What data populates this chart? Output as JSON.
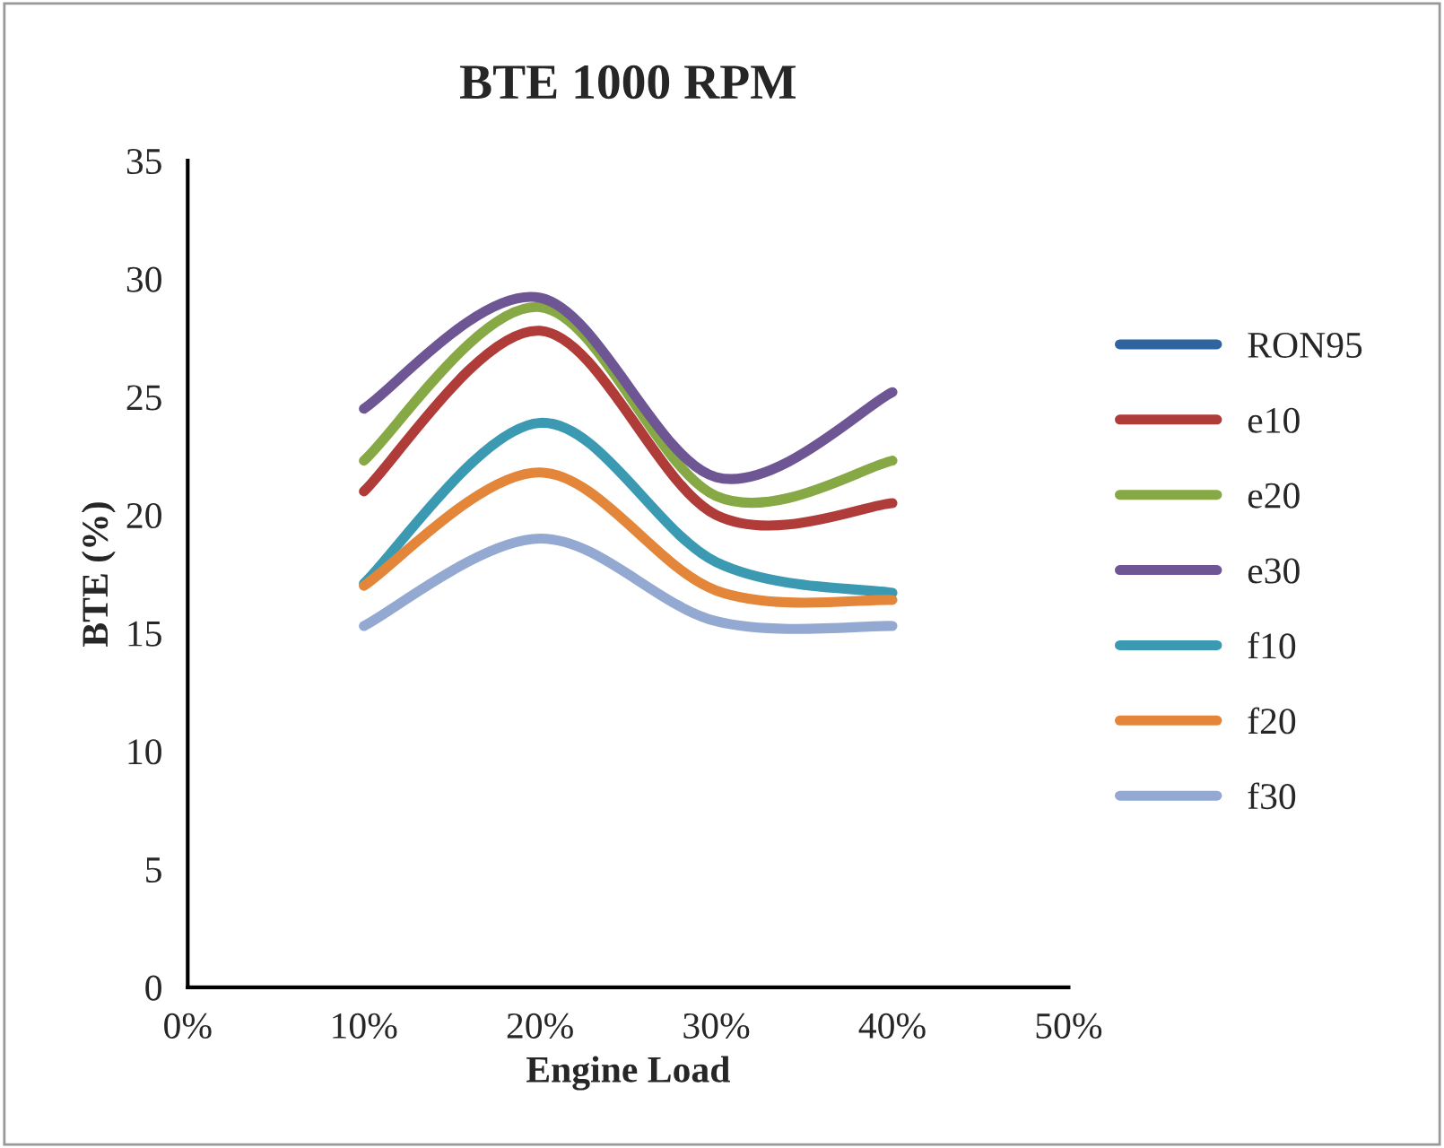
{
  "chart_data": {
    "type": "line",
    "title": "BTE 1000 RPM",
    "xlabel": "Engine Load",
    "ylabel": "BTE (%)",
    "x": [
      10,
      20,
      30,
      40
    ],
    "xlim": [
      0,
      50
    ],
    "xticks": [
      {
        "value": 0,
        "label": "0%"
      },
      {
        "value": 10,
        "label": "10%"
      },
      {
        "value": 20,
        "label": "20%"
      },
      {
        "value": 30,
        "label": "30%"
      },
      {
        "value": 40,
        "label": "40%"
      },
      {
        "value": 50,
        "label": "50%"
      }
    ],
    "ylim": [
      0,
      35
    ],
    "yticks": [
      0,
      5,
      10,
      15,
      20,
      25,
      30,
      35
    ],
    "grid": false,
    "legend": "right",
    "marker": "none",
    "line_style": "solid",
    "series": [
      {
        "name": "RON95",
        "color": "#2e64a0",
        "values": [
          null,
          null,
          null,
          null
        ]
      },
      {
        "name": "e10",
        "color": "#b03c3a",
        "values": [
          21.0,
          27.8,
          20.0,
          20.5
        ]
      },
      {
        "name": "e20",
        "color": "#86a845",
        "values": [
          22.3,
          28.8,
          20.8,
          22.3
        ]
      },
      {
        "name": "e30",
        "color": "#6e5594",
        "values": [
          24.5,
          29.2,
          21.6,
          25.2
        ]
      },
      {
        "name": "f10",
        "color": "#3b9ab2",
        "values": [
          17.1,
          23.9,
          18.0,
          16.7
        ]
      },
      {
        "name": "f20",
        "color": "#e3863a",
        "values": [
          17.0,
          21.8,
          16.8,
          16.4
        ]
      },
      {
        "name": "f30",
        "color": "#93a9d2",
        "values": [
          15.3,
          19.0,
          15.5,
          15.3
        ]
      }
    ]
  }
}
